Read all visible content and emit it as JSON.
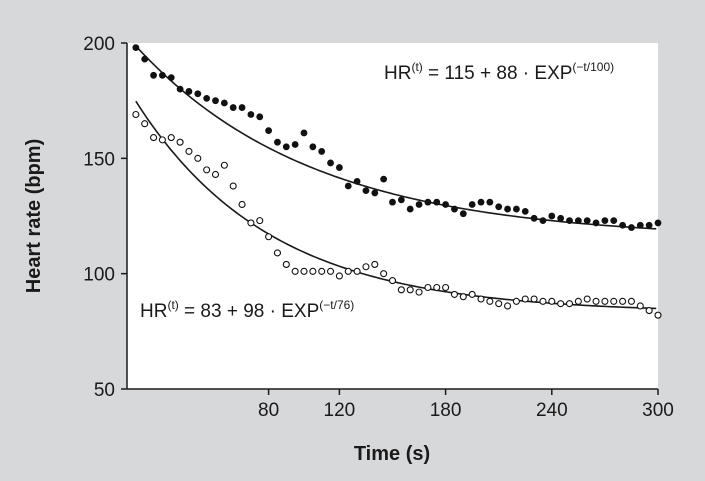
{
  "chart_data": {
    "type": "scatter",
    "xlabel": "Time (s)",
    "ylabel": "Heart rate (bpm)",
    "xlim": [
      0,
      300
    ],
    "ylim": [
      50,
      200
    ],
    "xticks": [
      "80",
      "120",
      "180",
      "240",
      "300"
    ],
    "xtick_values": [
      80,
      120,
      180,
      240,
      300
    ],
    "yticks": [
      "50",
      "100",
      "150",
      "200"
    ],
    "ytick_values": [
      50,
      100,
      150,
      200
    ],
    "grid": false,
    "series": [
      {
        "marker": "filled-circle",
        "fit": {
          "a": 115,
          "b": 88,
          "tau": 100
        },
        "equation": {
          "lhs": "HR",
          "sup_lhs": "(t)",
          "rhs": " = 115 + 88 · EXP",
          "sup_rhs": "(−t/100)"
        },
        "x": [
          5,
          10,
          15,
          20,
          25,
          30,
          35,
          40,
          45,
          50,
          55,
          60,
          65,
          70,
          75,
          80,
          85,
          90,
          95,
          100,
          105,
          110,
          115,
          120,
          125,
          130,
          135,
          140,
          145,
          150,
          155,
          160,
          165,
          170,
          175,
          180,
          185,
          190,
          195,
          200,
          205,
          210,
          215,
          220,
          225,
          230,
          235,
          240,
          245,
          250,
          255,
          260,
          265,
          270,
          275,
          280,
          285,
          290,
          295,
          300
        ],
        "y": [
          198,
          193,
          186,
          186,
          185,
          180,
          179,
          178,
          176,
          175,
          174,
          172,
          172,
          169,
          168,
          162,
          157,
          155,
          156,
          161,
          155,
          153,
          148,
          146,
          138,
          140,
          136,
          135,
          141,
          131,
          132,
          128,
          130,
          131,
          131,
          130,
          128,
          126,
          130,
          131,
          131,
          129,
          128,
          128,
          127,
          124,
          123,
          125,
          124,
          123,
          123,
          123,
          122,
          123,
          123,
          121,
          120,
          121,
          121,
          122
        ]
      },
      {
        "marker": "open-circle",
        "fit": {
          "a": 83,
          "b": 98,
          "tau": 76
        },
        "equation": {
          "lhs": "HR",
          "sup_lhs": "(t)",
          "rhs": " = 83 + 98 · EXP",
          "sup_rhs": "(−t/76)"
        },
        "x": [
          5,
          10,
          15,
          20,
          25,
          30,
          35,
          40,
          45,
          50,
          55,
          60,
          65,
          70,
          75,
          80,
          85,
          90,
          95,
          100,
          105,
          110,
          115,
          120,
          125,
          130,
          135,
          140,
          145,
          150,
          155,
          160,
          165,
          170,
          175,
          180,
          185,
          190,
          195,
          200,
          205,
          210,
          215,
          220,
          225,
          230,
          235,
          240,
          245,
          250,
          255,
          260,
          265,
          270,
          275,
          280,
          285,
          290,
          295,
          300
        ],
        "y": [
          169,
          165,
          159,
          158,
          159,
          157,
          153,
          150,
          145,
          143,
          147,
          138,
          130,
          122,
          123,
          116,
          109,
          104,
          101,
          101,
          101,
          101,
          101,
          99,
          101,
          101,
          103,
          104,
          100,
          97,
          93,
          93,
          92,
          94,
          94,
          94,
          91,
          90,
          91,
          89,
          88,
          87,
          86,
          88,
          89,
          89,
          88,
          88,
          87,
          87,
          88,
          89,
          88,
          88,
          88,
          88,
          88,
          86,
          84,
          82
        ]
      }
    ]
  }
}
